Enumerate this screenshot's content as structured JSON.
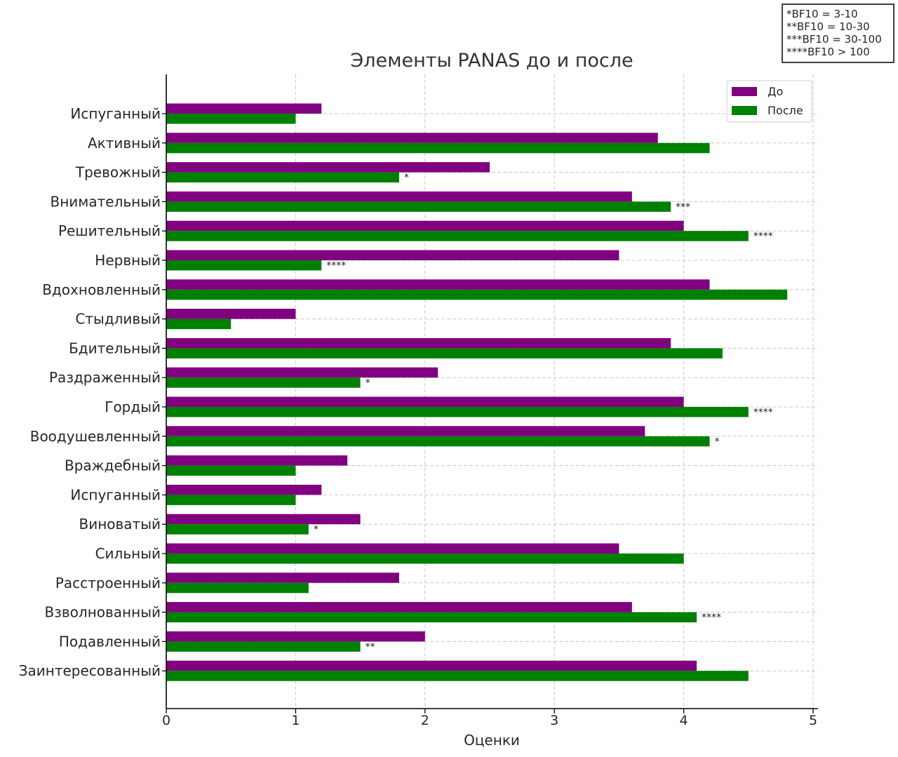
{
  "chart_data": {
    "type": "bar",
    "orientation": "horizontal",
    "title": "Элементы PANAS до и после",
    "xlabel": "Оценки",
    "ylabel": "",
    "xlim": [
      0,
      5
    ],
    "xticks": [
      "0",
      "1",
      "2",
      "3",
      "4",
      "5"
    ],
    "grid": true,
    "legend_position": "top-right",
    "categories": [
      "Испуганный",
      "Активный",
      "Тревожный",
      "Внимательный",
      "Решительный",
      "Нервный",
      "Вдохновленный",
      "Стыдливый",
      "Бдительный",
      "Раздраженный",
      "Гордый",
      "Воодушевленный",
      "Враждебный",
      "Испуганный",
      "Виноватый",
      "Сильный",
      "Расстроенный",
      "Взволнованный",
      "Подавленный",
      "Заинтересованный"
    ],
    "series": [
      {
        "name": "До",
        "color": "#800080",
        "values": [
          1.2,
          3.8,
          2.5,
          3.6,
          4.0,
          3.5,
          4.2,
          1.0,
          3.9,
          2.1,
          4.0,
          3.7,
          1.4,
          1.2,
          1.5,
          3.5,
          1.8,
          3.6,
          2.0,
          4.1
        ]
      },
      {
        "name": "После",
        "color": "#008000",
        "values": [
          1.0,
          4.2,
          1.8,
          3.9,
          4.5,
          1.2,
          4.8,
          0.5,
          4.3,
          1.5,
          4.5,
          4.2,
          1.0,
          1.0,
          1.1,
          4.0,
          1.1,
          4.1,
          1.5,
          4.5
        ]
      }
    ],
    "annotations": [
      "",
      "",
      "*",
      "***",
      "****",
      "****",
      "",
      "",
      "",
      "*",
      "****",
      "*",
      "",
      "",
      "*",
      "",
      "",
      "****",
      "**",
      ""
    ],
    "significance_key": [
      "*BF10 = 3-10",
      "**BF10 = 10-30",
      "***BF10 = 30-100",
      "****BF10 > 100"
    ]
  }
}
